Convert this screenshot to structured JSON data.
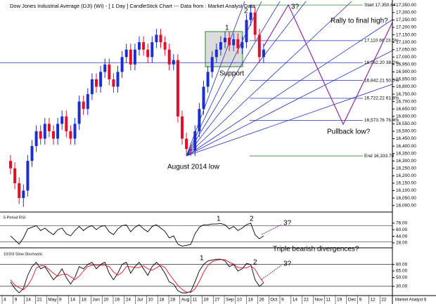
{
  "chart_data": [
    {
      "type": "candlestick",
      "title": "Dow Jones Industrial Average (DJI) (WI) - [ 1 Day ] CandleStick Chart --- Data from : Market Analyst Data",
      "open": [
        16300,
        16250,
        16150,
        16050,
        16100,
        16300,
        16400,
        16500,
        16450,
        16550,
        16500,
        16450,
        16550,
        16600,
        16500,
        16450,
        16550,
        16700,
        16650,
        16750,
        16850,
        16800,
        16900,
        16950,
        16850,
        16800,
        16900,
        17000,
        17050,
        16950,
        17050,
        17100,
        17050,
        17000,
        17100,
        17150,
        17100,
        17050,
        16950,
        16980,
        16600,
        16450,
        16380,
        16370,
        16500,
        16650,
        16800,
        16900,
        17000,
        17050,
        17100,
        17130,
        17080,
        17120,
        17060,
        17100,
        17250,
        17300,
        17150,
        17000
      ],
      "high": [
        16340,
        16290,
        16190,
        16140,
        16340,
        16440,
        16540,
        16540,
        16590,
        16590,
        16540,
        16590,
        16640,
        16640,
        16540,
        16590,
        16740,
        16740,
        16790,
        16890,
        16890,
        16940,
        16990,
        16990,
        16890,
        16940,
        17040,
        17090,
        17090,
        17090,
        17140,
        17140,
        17090,
        17140,
        17190,
        17190,
        17140,
        17090,
        17020,
        17020,
        16640,
        16490,
        16420,
        16540,
        16690,
        16840,
        16940,
        17040,
        17090,
        17140,
        17170,
        17170,
        17160,
        17160,
        17140,
        17290,
        17350,
        17340,
        17190,
        17090
      ],
      "low": [
        16210,
        16110,
        16010,
        15990,
        16060,
        16260,
        16360,
        16410,
        16410,
        16460,
        16410,
        16410,
        16510,
        16460,
        16410,
        16410,
        16510,
        16610,
        16610,
        16710,
        16760,
        16760,
        16860,
        16810,
        16760,
        16760,
        16860,
        16960,
        16910,
        16910,
        17010,
        17010,
        16960,
        16960,
        17060,
        17060,
        17010,
        16910,
        16910,
        16560,
        16410,
        16340,
        16333,
        16333,
        16460,
        16610,
        16760,
        16860,
        16960,
        17010,
        17060,
        17040,
        17040,
        17020,
        17020,
        17060,
        17210,
        17110,
        16960,
        16960
      ],
      "close": [
        16250,
        16150,
        16050,
        16100,
        16300,
        16400,
        16500,
        16450,
        16550,
        16500,
        16450,
        16550,
        16600,
        16500,
        16450,
        16550,
        16700,
        16650,
        16750,
        16850,
        16800,
        16900,
        16950,
        16850,
        16800,
        16900,
        17000,
        17050,
        16950,
        17050,
        17100,
        17050,
        17000,
        17100,
        17150,
        17100,
        17050,
        16950,
        16980,
        16600,
        16450,
        16380,
        16370,
        16500,
        16650,
        16800,
        16900,
        17000,
        17050,
        17100,
        17130,
        17080,
        17120,
        17060,
        17100,
        17250,
        17300,
        17150,
        17000,
        17050
      ],
      "up_color": "#1a2fd0",
      "down_color": "#e0102a",
      "ylim": [
        15965,
        17375
      ],
      "yticks": [
        {
          "value": 17350,
          "label": "17,350.00"
        },
        {
          "value": 17300,
          "label": "17,300.00"
        },
        {
          "value": 17250,
          "label": "17,250.00"
        },
        {
          "value": 17200,
          "label": "17,200.00"
        },
        {
          "value": 17150,
          "label": "17,150.00"
        },
        {
          "value": 17100,
          "label": "17,100.00"
        },
        {
          "value": 17050,
          "label": "17,050.00"
        },
        {
          "value": 17000,
          "label": "17,000.00"
        },
        {
          "value": 16950,
          "label": "16,950.00"
        },
        {
          "value": 16900,
          "label": "16,900.00"
        },
        {
          "value": 16850,
          "label": "16,850.00"
        },
        {
          "value": 16800,
          "label": "16,800.00"
        },
        {
          "value": 16750,
          "label": "16,750.00"
        },
        {
          "value": 16700,
          "label": "16,700.00"
        },
        {
          "value": 16650,
          "label": "16,650.00"
        },
        {
          "value": 16600,
          "label": "16,600.00"
        },
        {
          "value": 16550,
          "label": "16,550.00"
        },
        {
          "value": 16500,
          "label": "16,500.00"
        },
        {
          "value": 16450,
          "label": "16,450.00"
        },
        {
          "value": 16400,
          "label": "16,400.00"
        },
        {
          "value": 16350,
          "label": "16,350.00"
        },
        {
          "value": 16300,
          "label": "16,300.00"
        },
        {
          "value": 16250,
          "label": "16,250.00"
        },
        {
          "value": 16200,
          "label": "16,200.00"
        },
        {
          "value": 16150,
          "label": "16,150.00"
        },
        {
          "value": 16100,
          "label": "16,100.00"
        },
        {
          "value": 16050,
          "label": "16,050.00"
        },
        {
          "value": 16000,
          "label": "16,000.00"
        }
      ],
      "fib_levels": [
        {
          "value": 17350.64,
          "label": "Start 17,350.64"
        },
        {
          "value": 17110.66,
          "label": "17,110.66 23.6%"
        },
        {
          "value": 16962.2,
          "label": "16,962.20 38.2%"
        },
        {
          "value": 16842.21,
          "label": "16,842.21 50.0%"
        },
        {
          "value": 16722.22,
          "label": "16,722.22 61.8%"
        },
        {
          "value": 16573.76,
          "label": "16,573.76 76.4%"
        },
        {
          "value": 16333.78,
          "label": "End 16,333.78"
        }
      ],
      "x_labels": [
        "4",
        "9",
        "14",
        "22",
        "May",
        "9",
        "14",
        "18",
        "Jun",
        "10",
        "16",
        "24",
        "Jul",
        "10",
        "18",
        "28",
        "Aug",
        "11",
        "19",
        "27",
        "Sep",
        "10",
        "18",
        "26",
        "Oct",
        "9",
        "14",
        "22",
        "Nov",
        "11",
        "19",
        "Dec",
        "9",
        "12",
        "22"
      ],
      "annotations": [
        "1",
        "2",
        "3?",
        "Support",
        "August 2014 low",
        "Rally to final high?",
        "Pullback low?"
      ],
      "watermark": "Market Analyst 6"
    },
    {
      "type": "line",
      "title": "5 Period RSI",
      "values": [
        45,
        35,
        25,
        40,
        62,
        66,
        70,
        58,
        64,
        55,
        48,
        60,
        64,
        50,
        45,
        58,
        68,
        58,
        66,
        70,
        60,
        68,
        70,
        55,
        48,
        62,
        70,
        72,
        55,
        66,
        72,
        62,
        55,
        68,
        72,
        64,
        56,
        40,
        45,
        25,
        20,
        22,
        24,
        50,
        66,
        72,
        72,
        74,
        74,
        75,
        72,
        62,
        68,
        58,
        64,
        72,
        76,
        48,
        38,
        45
      ],
      "color": "#000000",
      "levels": [
        70,
        30
      ],
      "ylim": [
        21,
        98
      ],
      "yticks": [
        {
          "value": 76,
          "label": "76.00"
        },
        {
          "value": 60,
          "label": "60.00"
        },
        {
          "value": 44,
          "label": "44.00"
        },
        {
          "value": 28,
          "label": "28.00"
        }
      ],
      "annotations": [
        "1",
        "2",
        "3?",
        "Triple bearish divergences?"
      ]
    },
    {
      "type": "line",
      "title": "10/3/3 Slow Stochastic",
      "series": [
        {
          "color": "#000000",
          "values": [
            40,
            25,
            15,
            25,
            55,
            75,
            85,
            70,
            75,
            60,
            45,
            55,
            70,
            50,
            35,
            50,
            75,
            70,
            80,
            85,
            70,
            80,
            85,
            60,
            45,
            60,
            80,
            85,
            60,
            75,
            85,
            70,
            55,
            75,
            85,
            75,
            60,
            40,
            35,
            20,
            15,
            15,
            18,
            40,
            65,
            80,
            88,
            90,
            92,
            92,
            88,
            75,
            80,
            65,
            70,
            82,
            80,
            45,
            30,
            38
          ]
        },
        {
          "color": "#e0102a",
          "values": [
            45,
            33,
            27,
            22,
            32,
            48,
            72,
            77,
            77,
            68,
            60,
            53,
            57,
            58,
            52,
            45,
            53,
            65,
            75,
            78,
            78,
            78,
            78,
            75,
            63,
            55,
            62,
            75,
            75,
            73,
            73,
            77,
            70,
            67,
            72,
            78,
            73,
            58,
            45,
            32,
            23,
            17,
            16,
            24,
            41,
            62,
            78,
            86,
            90,
            91,
            91,
            85,
            81,
            73,
            72,
            72,
            77,
            69,
            52,
            38
          ]
        }
      ],
      "levels": [
        80,
        30
      ],
      "ylim": [
        12,
        110
      ],
      "yticks": [
        {
          "value": 80,
          "label": "80.00"
        },
        {
          "value": 65,
          "label": "65.00"
        },
        {
          "value": 50,
          "label": "50.00"
        },
        {
          "value": 30,
          "label": "30.00"
        }
      ],
      "annotations": [
        "1",
        "2",
        "3?"
      ]
    }
  ]
}
